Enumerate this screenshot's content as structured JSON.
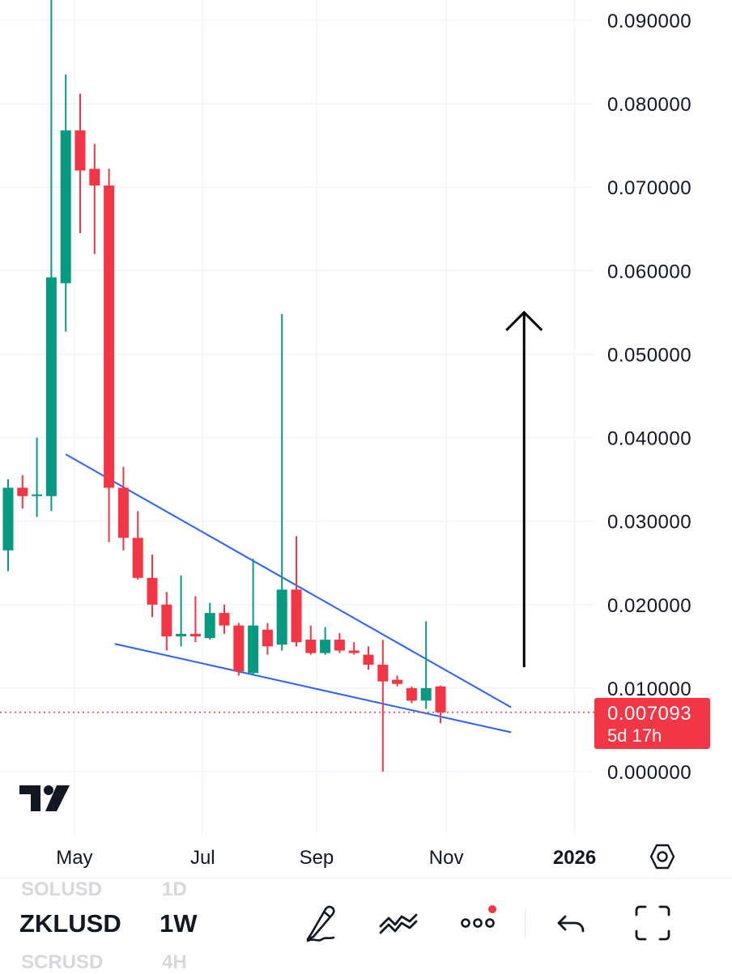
{
  "chart_data": {
    "type": "candlestick",
    "symbol": "ZKLUSD",
    "timeframe": "1W",
    "y_ticks": [
      "0.090000",
      "0.080000",
      "0.070000",
      "0.060000",
      "0.050000",
      "0.040000",
      "0.030000",
      "0.020000",
      "0.010000",
      "0.000000"
    ],
    "y_range": [
      -0.002,
      0.093
    ],
    "x_ticks": [
      {
        "label": "May",
        "week": 4.6,
        "bold": false
      },
      {
        "label": "Jul",
        "week": 13.5,
        "bold": false
      },
      {
        "label": "Sep",
        "week": 21.4,
        "bold": false
      },
      {
        "label": "Nov",
        "week": 30.4,
        "bold": false
      },
      {
        "label": "2026",
        "week": 39.3,
        "bold": true
      }
    ],
    "candles": [
      {
        "week": 0,
        "o": 0.0265,
        "h": 0.035,
        "l": 0.024,
        "c": 0.034
      },
      {
        "week": 1,
        "o": 0.034,
        "h": 0.0355,
        "l": 0.0315,
        "c": 0.033
      },
      {
        "week": 2,
        "o": 0.033,
        "h": 0.04,
        "l": 0.0305,
        "c": 0.0332
      },
      {
        "week": 3,
        "o": 0.033,
        "h": 0.0945,
        "l": 0.0312,
        "c": 0.0592
      },
      {
        "week": 4,
        "o": 0.0585,
        "h": 0.0835,
        "l": 0.0527,
        "c": 0.0768
      },
      {
        "week": 5,
        "o": 0.0768,
        "h": 0.0812,
        "l": 0.0645,
        "c": 0.072
      },
      {
        "week": 6,
        "o": 0.0722,
        "h": 0.0752,
        "l": 0.062,
        "c": 0.0702
      },
      {
        "week": 7,
        "o": 0.0702,
        "h": 0.0722,
        "l": 0.0275,
        "c": 0.034
      },
      {
        "week": 8,
        "o": 0.034,
        "h": 0.0365,
        "l": 0.0265,
        "c": 0.028
      },
      {
        "week": 9,
        "o": 0.028,
        "h": 0.0312,
        "l": 0.023,
        "c": 0.0232
      },
      {
        "week": 10,
        "o": 0.0232,
        "h": 0.026,
        "l": 0.0185,
        "c": 0.02
      },
      {
        "week": 11,
        "o": 0.02,
        "h": 0.0215,
        "l": 0.0145,
        "c": 0.0162
      },
      {
        "week": 12,
        "o": 0.0162,
        "h": 0.0235,
        "l": 0.015,
        "c": 0.0165
      },
      {
        "week": 13,
        "o": 0.0165,
        "h": 0.021,
        "l": 0.0155,
        "c": 0.0162
      },
      {
        "week": 14,
        "o": 0.016,
        "h": 0.0202,
        "l": 0.0158,
        "c": 0.019
      },
      {
        "week": 15,
        "o": 0.019,
        "h": 0.02,
        "l": 0.0165,
        "c": 0.0175
      },
      {
        "week": 16,
        "o": 0.0175,
        "h": 0.0178,
        "l": 0.0115,
        "c": 0.012
      },
      {
        "week": 17,
        "o": 0.0118,
        "h": 0.0255,
        "l": 0.0115,
        "c": 0.0175
      },
      {
        "week": 18,
        "o": 0.017,
        "h": 0.0178,
        "l": 0.014,
        "c": 0.015
      },
      {
        "week": 19,
        "o": 0.0152,
        "h": 0.0548,
        "l": 0.0145,
        "c": 0.0218
      },
      {
        "week": 20,
        "o": 0.0218,
        "h": 0.0282,
        "l": 0.015,
        "c": 0.0155
      },
      {
        "week": 21,
        "o": 0.0158,
        "h": 0.0175,
        "l": 0.014,
        "c": 0.0142
      },
      {
        "week": 22,
        "o": 0.0142,
        "h": 0.0173,
        "l": 0.014,
        "c": 0.0158
      },
      {
        "week": 23,
        "o": 0.0158,
        "h": 0.0166,
        "l": 0.0142,
        "c": 0.0145
      },
      {
        "week": 24,
        "o": 0.0145,
        "h": 0.0155,
        "l": 0.014,
        "c": 0.0142
      },
      {
        "week": 25,
        "o": 0.014,
        "h": 0.015,
        "l": 0.0122,
        "c": 0.0128
      },
      {
        "week": 26,
        "o": 0.0128,
        "h": 0.0158,
        "l": 0.0,
        "c": 0.0108
      },
      {
        "week": 27,
        "o": 0.011,
        "h": 0.0115,
        "l": 0.0102,
        "c": 0.0105
      },
      {
        "week": 28,
        "o": 0.01,
        "h": 0.0102,
        "l": 0.0082,
        "c": 0.0085
      },
      {
        "week": 29,
        "o": 0.0085,
        "h": 0.018,
        "l": 0.0075,
        "c": 0.01
      },
      {
        "week": 30,
        "o": 0.0102,
        "h": 0.0103,
        "l": 0.0058,
        "c": 0.0071
      }
    ],
    "trendlines": [
      {
        "name": "upper",
        "from": {
          "week": 4.0,
          "price": 0.038
        },
        "to": {
          "week": 34.9,
          "price": 0.0077
        }
      },
      {
        "name": "lower",
        "from": {
          "week": 7.4,
          "price": 0.0153
        },
        "to": {
          "week": 34.9,
          "price": 0.0047
        }
      }
    ],
    "arrow": {
      "from": {
        "week": 35.8,
        "price": 0.0125
      },
      "to": {
        "week": 35.8,
        "price": 0.055
      }
    },
    "current_price": {
      "value": 0.007093,
      "label": "0.007093",
      "countdown": "5d 17h"
    },
    "colors": {
      "up": "#089981",
      "down": "#f23645",
      "trendline": "#2962ff",
      "arrow": "#000000",
      "grid": "#f0f3fa",
      "last_price": "#f23645"
    },
    "grid": true
  },
  "toolbar": {
    "symbol": "ZKLUSD",
    "symbol_above": "SOLUSD",
    "symbol_below": "SCRUSD",
    "interval": "1W",
    "interval_above": "1D",
    "interval_below": "4H",
    "icons": [
      "drawing-pen-icon",
      "indicators-icon",
      "more-icon",
      "undo-icon",
      "fullscreen-icon"
    ],
    "more_notification_color": "#f23645"
  }
}
